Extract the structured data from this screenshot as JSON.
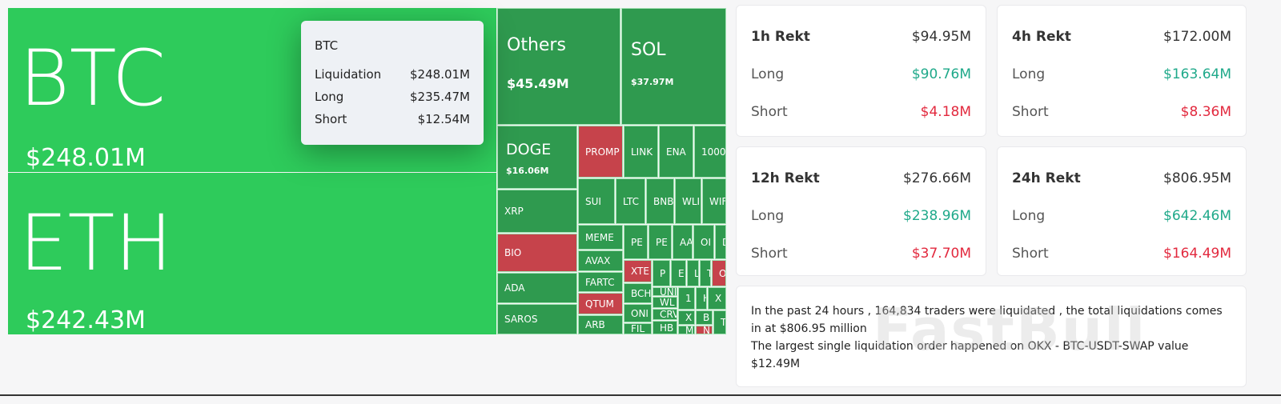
{
  "treemap": {
    "tiles": [
      {
        "label": "BTC",
        "value": "$248.01M",
        "color": "bright"
      },
      {
        "label": "ETH",
        "value": "$242.43M",
        "color": "bright"
      },
      {
        "label": "Others",
        "value": "$45.49M"
      },
      {
        "label": "SOL",
        "value": "$37.97M"
      },
      {
        "label": "DOGE",
        "value": "$16.06M"
      },
      {
        "label": "XRP"
      },
      {
        "label": "BIO",
        "color": "red"
      },
      {
        "label": "ADA"
      },
      {
        "label": "SAROS"
      },
      {
        "label": "PROMP",
        "color": "red"
      },
      {
        "label": "LINK"
      },
      {
        "label": "ENA"
      },
      {
        "label": "1000"
      },
      {
        "label": "SUI"
      },
      {
        "label": "LTC"
      },
      {
        "label": "BNB"
      },
      {
        "label": "WLI"
      },
      {
        "label": "WIF"
      },
      {
        "label": "MEME"
      },
      {
        "label": "AVAX"
      },
      {
        "label": "FARTC"
      },
      {
        "label": "QTUM",
        "color": "red"
      },
      {
        "label": "ARB"
      },
      {
        "label": "PE"
      },
      {
        "label": "PE"
      },
      {
        "label": "AA"
      },
      {
        "label": "OI"
      },
      {
        "label": "D"
      },
      {
        "label": "XTE",
        "color": "red"
      },
      {
        "label": "BCH"
      },
      {
        "label": "ONI"
      },
      {
        "label": "FIL"
      },
      {
        "label": "P"
      },
      {
        "label": "E"
      },
      {
        "label": "L"
      },
      {
        "label": "T"
      },
      {
        "label": "O",
        "color": "red"
      },
      {
        "label": "UNI"
      },
      {
        "label": "WL"
      },
      {
        "label": "CRV"
      },
      {
        "label": "HB"
      },
      {
        "label": "1"
      },
      {
        "label": "H"
      },
      {
        "label": "X"
      },
      {
        "label": "X"
      },
      {
        "label": "B"
      },
      {
        "label": "M"
      },
      {
        "label": "N",
        "color": "red"
      },
      {
        "label": "T"
      }
    ],
    "colors": {
      "bright": "#2ecb5b",
      "green": "#2f9a4f",
      "red": "#c6434b"
    }
  },
  "tooltip": {
    "title": "BTC",
    "rows": [
      {
        "label": "Liquidation",
        "value": "$248.01M"
      },
      {
        "label": "Long",
        "value": "$235.47M"
      },
      {
        "label": "Short",
        "value": "$12.54M"
      }
    ]
  },
  "cards": [
    {
      "title": "1h Rekt",
      "total": "$94.95M",
      "long_label": "Long",
      "long": "$90.76M",
      "short_label": "Short",
      "short": "$4.18M"
    },
    {
      "title": "4h Rekt",
      "total": "$172.00M",
      "long_label": "Long",
      "long": "$163.64M",
      "short_label": "Short",
      "short": "$8.36M"
    },
    {
      "title": "12h Rekt",
      "total": "$276.66M",
      "long_label": "Long",
      "long": "$238.96M",
      "short_label": "Short",
      "short": "$37.70M"
    },
    {
      "title": "24h Rekt",
      "total": "$806.95M",
      "long_label": "Long",
      "long": "$642.46M",
      "short_label": "Short",
      "short": "$164.49M"
    }
  ],
  "summary": {
    "line1": "In the past 24 hours , 164,834 traders were liquidated , the total liquidations comes in at $806.95 million",
    "line2": "The largest single liquidation order happened on OKX - BTC-USDT-SWAP value $12.49M"
  },
  "watermark": "FastBull"
}
